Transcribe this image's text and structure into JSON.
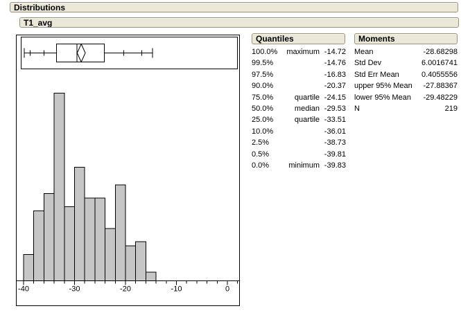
{
  "report": {
    "title": "Distributions",
    "variable": "T1_avg"
  },
  "quantiles_panel": {
    "title": "Quantiles",
    "rows": [
      {
        "pct": "100.0%",
        "name": "maximum",
        "value": "-14.72"
      },
      {
        "pct": "99.5%",
        "name": "",
        "value": "-14.76"
      },
      {
        "pct": "97.5%",
        "name": "",
        "value": "-16.83"
      },
      {
        "pct": "90.0%",
        "name": "",
        "value": "-20.37"
      },
      {
        "pct": "75.0%",
        "name": "quartile",
        "value": "-24.15"
      },
      {
        "pct": "50.0%",
        "name": "median",
        "value": "-29.53"
      },
      {
        "pct": "25.0%",
        "name": "quartile",
        "value": "-33.51"
      },
      {
        "pct": "10.0%",
        "name": "",
        "value": "-36.01"
      },
      {
        "pct": "2.5%",
        "name": "",
        "value": "-38.73"
      },
      {
        "pct": "0.5%",
        "name": "",
        "value": "-39.81"
      },
      {
        "pct": "0.0%",
        "name": "minimum",
        "value": "-39.83"
      }
    ]
  },
  "moments_panel": {
    "title": "Moments",
    "rows": [
      {
        "label": "Mean",
        "value": "-28.68298"
      },
      {
        "label": "Std Dev",
        "value": "6.0016741"
      },
      {
        "label": "Std Err Mean",
        "value": "0.4055556"
      },
      {
        "label": "upper 95% Mean",
        "value": "-27.88367"
      },
      {
        "label": "lower 95% Mean",
        "value": "-29.48229"
      },
      {
        "label": "N",
        "value": "219"
      }
    ]
  },
  "chart_data": {
    "type": "bar",
    "subtype": "histogram-with-quantile-boxplot",
    "title": "",
    "xlabel": "",
    "ylabel": "",
    "histogram": {
      "bin_start": -40,
      "bin_width": 2,
      "counts": [
        6,
        16,
        20,
        43,
        17,
        26,
        19,
        19,
        12,
        22,
        8,
        9,
        2
      ],
      "n_total": 219
    },
    "x_axis": {
      "range": [
        -41.4,
        2.7
      ],
      "major_ticks": [
        -40,
        -30,
        -20,
        -10,
        0
      ],
      "tick_labels": [
        "-40",
        "-30",
        "-20",
        "-10",
        "0"
      ],
      "minor_tick_step": 2,
      "grid": false
    },
    "boxplot": {
      "minimum": -39.83,
      "q1": -33.51,
      "median": -29.53,
      "q3": -24.15,
      "maximum": -14.72,
      "mean": -28.68298,
      "ci_lower_95": -29.48229,
      "ci_upper_95": -27.88367,
      "quantile_ticks": [
        -38.73,
        -36.01,
        -20.37,
        -16.83
      ]
    },
    "colors": {
      "bar_fill": "#c6c6c6",
      "bar_stroke": "#000000",
      "line": "#000000"
    }
  },
  "colors": {
    "panel_header_bg": "#ebe8d9",
    "panel_header_border": "#99937e",
    "background": "#ffffff"
  }
}
